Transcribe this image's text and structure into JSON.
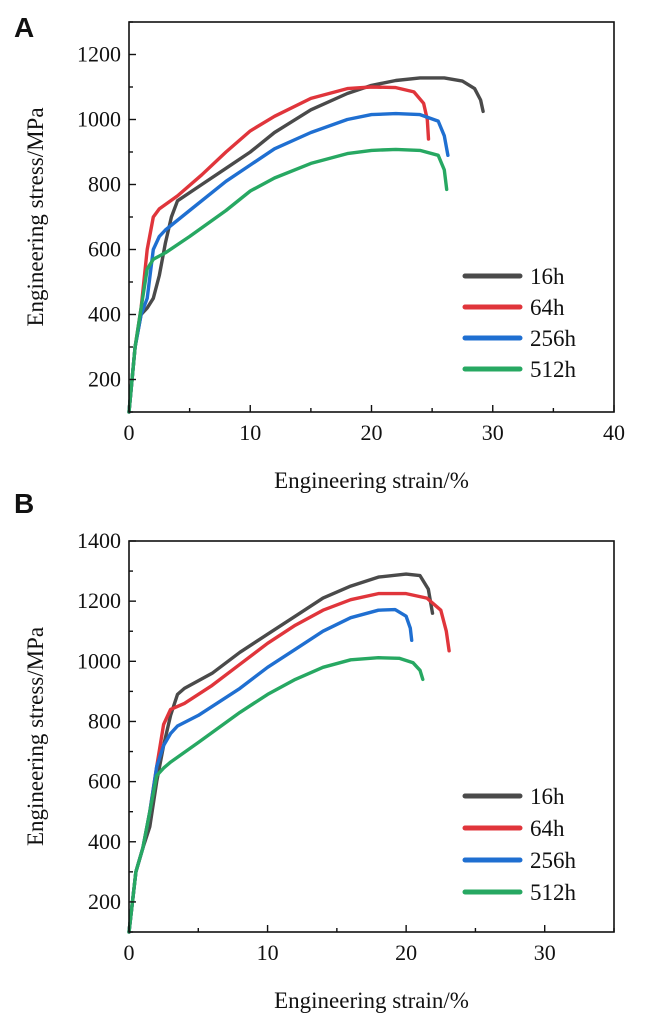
{
  "chart_data": [
    {
      "panel_label": "A",
      "type": "line",
      "xlabel": "Engineering strain/%",
      "ylabel": "Engineering stress/MPa",
      "xlim": [
        0,
        40
      ],
      "ylim": [
        100,
        1300
      ],
      "xticks": [
        0,
        10,
        20,
        30,
        40
      ],
      "yticks": [
        200,
        400,
        600,
        800,
        1000,
        1200
      ],
      "grid": false,
      "legend_position": "lower-right",
      "series": [
        {
          "name": "16h",
          "color": "#4a4a4a",
          "x": [
            0,
            0.5,
            1,
            1.5,
            2,
            2.5,
            3,
            3.5,
            4,
            6,
            8,
            10,
            12,
            15,
            18,
            20,
            22,
            24,
            26,
            27.5,
            28.5,
            29,
            29.2
          ],
          "y": [
            100,
            300,
            400,
            420,
            450,
            520,
            620,
            700,
            750,
            800,
            850,
            900,
            960,
            1030,
            1080,
            1105,
            1120,
            1128,
            1128,
            1118,
            1095,
            1060,
            1025
          ]
        },
        {
          "name": "64h",
          "color": "#e0353b",
          "x": [
            0,
            0.5,
            1,
            1.5,
            2,
            2.5,
            4,
            6,
            8,
            10,
            12,
            15,
            18,
            20,
            22,
            23.5,
            24.3,
            24.6,
            24.7
          ],
          "y": [
            100,
            300,
            420,
            600,
            700,
            725,
            765,
            830,
            900,
            965,
            1010,
            1065,
            1095,
            1100,
            1098,
            1085,
            1050,
            1000,
            940
          ]
        },
        {
          "name": "256h",
          "color": "#1f6fd1",
          "x": [
            0,
            0.5,
            1,
            1.5,
            2,
            2.5,
            3,
            5,
            8,
            10,
            12,
            15,
            18,
            20,
            22,
            24,
            25.5,
            26,
            26.3
          ],
          "y": [
            100,
            300,
            400,
            450,
            600,
            640,
            660,
            720,
            810,
            860,
            910,
            960,
            1000,
            1015,
            1018,
            1015,
            995,
            950,
            890
          ]
        },
        {
          "name": "512h",
          "color": "#27a862",
          "x": [
            0,
            0.5,
            1,
            1.5,
            2,
            3,
            5,
            8,
            10,
            12,
            15,
            18,
            20,
            22,
            24,
            25.5,
            26,
            26.2
          ],
          "y": [
            100,
            300,
            420,
            540,
            570,
            590,
            640,
            720,
            780,
            820,
            865,
            895,
            905,
            908,
            905,
            890,
            845,
            785
          ]
        }
      ]
    },
    {
      "panel_label": "B",
      "type": "line",
      "xlabel": "Engineering strain/%",
      "ylabel": "Engineering stress/MPa",
      "xlim": [
        0,
        35
      ],
      "ylim": [
        100,
        1400
      ],
      "xticks": [
        0,
        10,
        20,
        30
      ],
      "yticks": [
        200,
        400,
        600,
        800,
        1000,
        1200,
        1400
      ],
      "grid": false,
      "legend_position": "lower-right",
      "series": [
        {
          "name": "16h",
          "color": "#4a4a4a",
          "x": [
            0,
            0.5,
            1,
            1.5,
            2,
            2.5,
            3,
            3.5,
            4,
            6,
            8,
            10,
            12,
            14,
            16,
            18,
            20,
            21,
            21.6,
            21.9
          ],
          "y": [
            100,
            300,
            380,
            450,
            600,
            720,
            820,
            890,
            910,
            960,
            1030,
            1090,
            1150,
            1210,
            1250,
            1280,
            1290,
            1285,
            1240,
            1160
          ]
        },
        {
          "name": "64h",
          "color": "#e0353b",
          "x": [
            0,
            0.5,
            1,
            1.5,
            2,
            2.5,
            3,
            4,
            6,
            8,
            10,
            12,
            14,
            16,
            18,
            20,
            21.5,
            22.5,
            22.9,
            23.1
          ],
          "y": [
            100,
            300,
            380,
            500,
            650,
            790,
            840,
            860,
            920,
            990,
            1060,
            1120,
            1170,
            1205,
            1225,
            1225,
            1210,
            1170,
            1100,
            1035
          ]
        },
        {
          "name": "256h",
          "color": "#1f6fd1",
          "x": [
            0,
            0.5,
            1,
            1.5,
            2,
            2.5,
            3,
            3.5,
            5,
            8,
            10,
            12,
            14,
            16,
            18,
            19.2,
            20,
            20.3,
            20.4
          ],
          "y": [
            100,
            300,
            380,
            500,
            650,
            720,
            760,
            785,
            820,
            910,
            980,
            1040,
            1100,
            1145,
            1170,
            1172,
            1150,
            1110,
            1070
          ]
        },
        {
          "name": "512h",
          "color": "#27a862",
          "x": [
            0,
            0.5,
            1,
            1.5,
            2,
            2.5,
            3,
            5,
            8,
            10,
            12,
            14,
            16,
            18,
            19.5,
            20.5,
            21,
            21.2
          ],
          "y": [
            100,
            300,
            380,
            500,
            620,
            645,
            665,
            730,
            830,
            890,
            940,
            980,
            1005,
            1012,
            1010,
            995,
            970,
            940
          ]
        }
      ]
    }
  ]
}
